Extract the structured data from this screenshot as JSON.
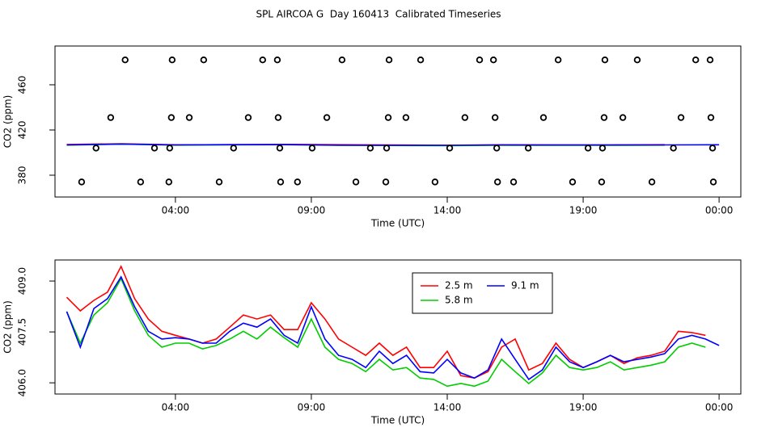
{
  "chart_data": [
    {
      "type": "line",
      "title": "SPL AIRCOA G  Day 160413  Calibrated Timeseries",
      "xlabel": "Time (UTC)",
      "ylabel": "CO2 (ppm)",
      "xlim": [
        -0.43,
        24.8
      ],
      "ylim": [
        360.7,
        494.3
      ],
      "xticks": [
        {
          "value": 4,
          "label": "04:00"
        },
        {
          "value": 9,
          "label": "09:00"
        },
        {
          "value": 14,
          "label": "14:00"
        },
        {
          "value": 19,
          "label": "19:00"
        },
        {
          "value": 24,
          "label": "00:00"
        }
      ],
      "yticks": [
        380,
        420,
        460
      ],
      "x": [
        0,
        2,
        4,
        6,
        8,
        10,
        12,
        14,
        16,
        18,
        20,
        22,
        24
      ],
      "series": [
        {
          "color": "#ff0000",
          "values": [
            407.2,
            407.8,
            406.9,
            407.0,
            407.3,
            407.0,
            406.8,
            406.5,
            406.9,
            406.8,
            406.8,
            407.0,
            null
          ]
        },
        {
          "color": "#00cd00",
          "values": [
            406.6,
            407.5,
            406.6,
            406.8,
            406.9,
            406.4,
            406.3,
            406.1,
            406.5,
            406.5,
            406.5,
            406.6,
            null
          ]
        },
        {
          "color": "#0000ff",
          "values": [
            406.8,
            407.6,
            406.8,
            407.0,
            407.1,
            406.6,
            406.5,
            406.4,
            406.8,
            406.7,
            406.7,
            406.8,
            406.9
          ]
        }
      ],
      "points": {
        "color": "#000000",
        "x": [
          2.15,
          3.88,
          5.04,
          7.21,
          7.75,
          10.13,
          11.86,
          13.02,
          15.19,
          15.7,
          18.08,
          19.8,
          20.99,
          23.14,
          23.67,
          1.62,
          3.85,
          4.51,
          6.68,
          7.78,
          9.57,
          11.83,
          12.48,
          14.65,
          15.76,
          17.54,
          19.77,
          20.46,
          22.6,
          23.7,
          1.08,
          3.23,
          3.79,
          6.14,
          7.84,
          9.03,
          11.17,
          11.77,
          14.09,
          15.82,
          16.98,
          19.18,
          19.71,
          22.32,
          23.76,
          0.55,
          2.72,
          3.76,
          5.61,
          7.87,
          8.49,
          10.64,
          11.74,
          13.55,
          15.85,
          16.44,
          18.61,
          19.68,
          21.53,
          23.79
        ],
        "values": [
          482,
          482,
          482,
          482,
          482,
          482,
          482,
          482,
          482,
          482,
          482,
          482,
          482,
          482,
          482,
          431,
          431,
          431,
          431,
          431,
          431,
          431,
          431,
          431,
          431,
          431,
          431,
          431,
          431,
          431,
          404,
          404,
          404,
          404,
          404,
          404,
          404,
          404,
          404,
          404,
          404,
          404,
          404,
          404,
          404,
          374,
          374,
          374,
          374,
          374,
          374,
          374,
          374,
          374,
          374,
          374,
          374,
          374,
          374,
          374
        ]
      }
    },
    {
      "type": "line",
      "xlabel": "Time (UTC)",
      "ylabel": "CO2 (ppm)",
      "xlim": [
        -0.43,
        24.8
      ],
      "ylim": [
        405.67,
        409.62
      ],
      "xticks": [
        {
          "value": 4,
          "label": "04:00"
        },
        {
          "value": 9,
          "label": "09:00"
        },
        {
          "value": 14,
          "label": "14:00"
        },
        {
          "value": 19,
          "label": "19:00"
        },
        {
          "value": 24,
          "label": "00:00"
        }
      ],
      "yticks": [
        {
          "value": 406,
          "label": "406.0"
        },
        {
          "value": 407.5,
          "label": "407.5"
        },
        {
          "value": 409,
          "label": "409.0"
        }
      ],
      "legend": "top",
      "x": [
        0,
        0.5,
        1,
        1.5,
        2,
        2.5,
        3,
        3.5,
        4,
        4.5,
        5,
        5.5,
        6,
        6.5,
        7,
        7.5,
        8,
        8.5,
        9,
        9.5,
        10,
        10.5,
        11,
        11.5,
        12,
        12.5,
        13,
        13.5,
        14,
        14.5,
        15,
        15.5,
        16,
        16.5,
        17,
        17.5,
        18,
        18.5,
        19,
        19.5,
        20,
        20.5,
        21,
        21.5,
        22,
        22.5,
        23,
        23.5,
        24
      ],
      "series": [
        {
          "name": "2.5 m",
          "color": "#ff0000",
          "values": [
            408.52,
            408.12,
            408.43,
            408.67,
            409.43,
            408.48,
            407.88,
            407.52,
            407.4,
            407.29,
            407.17,
            407.29,
            407.64,
            408.0,
            407.88,
            408.0,
            407.57,
            407.57,
            408.36,
            407.88,
            407.29,
            407.05,
            406.81,
            407.17,
            406.81,
            407.05,
            406.45,
            406.45,
            406.93,
            406.21,
            406.14,
            406.33,
            407.05,
            407.29,
            406.38,
            406.57,
            407.17,
            406.69,
            406.45,
            406.62,
            406.81,
            406.57,
            406.74,
            406.81,
            406.93,
            407.52,
            407.48,
            407.4,
            null
          ]
        },
        {
          "name": "5.8 m",
          "color": "#00cd00",
          "values": [
            408.1,
            407.17,
            408.0,
            408.36,
            409.07,
            408.12,
            407.4,
            407.05,
            407.17,
            407.17,
            407.0,
            407.1,
            407.29,
            407.52,
            407.29,
            407.64,
            407.33,
            407.05,
            407.88,
            407.05,
            406.69,
            406.57,
            406.33,
            406.69,
            406.38,
            406.45,
            406.14,
            406.1,
            405.9,
            405.98,
            405.9,
            406.05,
            406.69,
            406.33,
            405.98,
            406.29,
            406.81,
            406.45,
            406.38,
            406.45,
            406.62,
            406.38,
            406.45,
            406.52,
            406.62,
            407.05,
            407.17,
            407.05,
            null
          ]
        },
        {
          "name": "9.1 m",
          "color": "#0000ff",
          "values": [
            408.1,
            407.05,
            408.19,
            408.48,
            409.12,
            408.24,
            407.52,
            407.29,
            407.33,
            407.29,
            407.17,
            407.17,
            407.52,
            407.76,
            407.64,
            407.88,
            407.4,
            407.17,
            408.24,
            407.29,
            406.81,
            406.69,
            406.45,
            406.93,
            406.57,
            406.81,
            406.33,
            406.29,
            406.69,
            406.29,
            406.14,
            406.38,
            407.29,
            406.69,
            406.1,
            406.38,
            407.05,
            406.62,
            406.45,
            406.62,
            406.81,
            406.62,
            406.69,
            406.76,
            406.86,
            407.29,
            407.4,
            407.29,
            407.1
          ]
        }
      ]
    }
  ]
}
